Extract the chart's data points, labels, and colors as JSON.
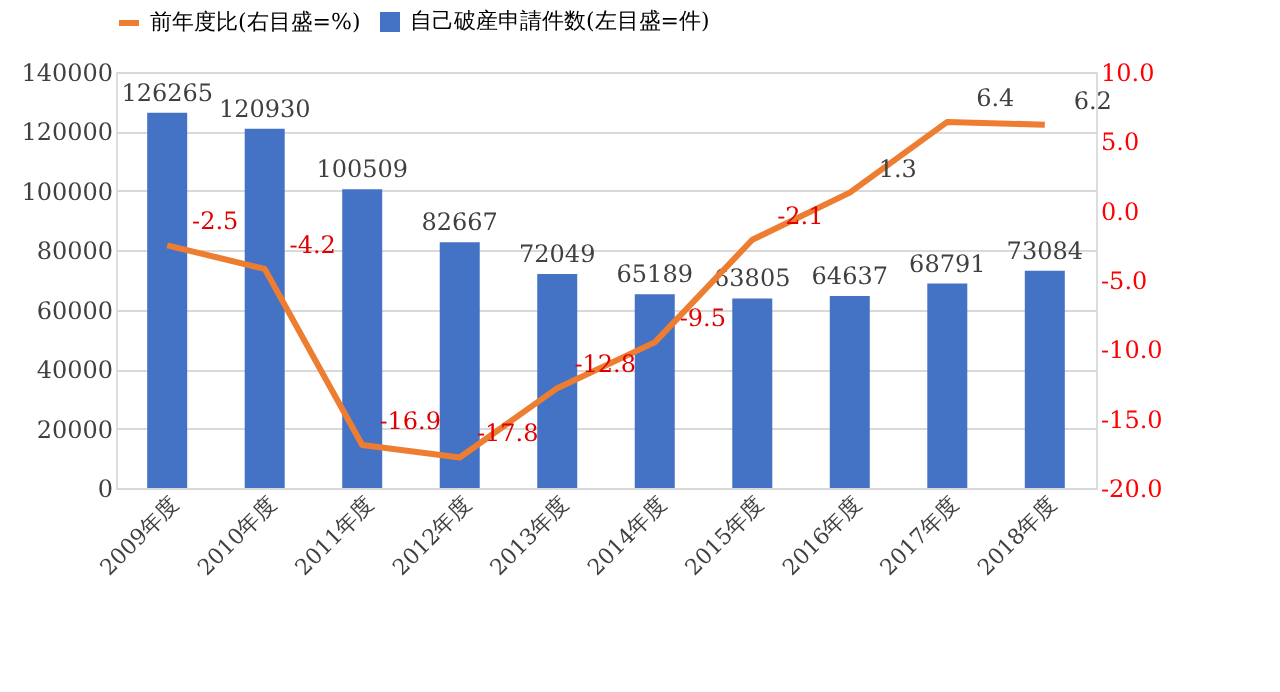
{
  "chart_data": {
    "type": "bar",
    "categories": [
      "2009年度",
      "2010年度",
      "2011年度",
      "2012年度",
      "2013年度",
      "2014年度",
      "2015年度",
      "2016年度",
      "2017年度",
      "2018年度"
    ],
    "series": [
      {
        "name": "自己破産申請件数(左目盛=件)",
        "color": "#4472c4",
        "values": [
          126265,
          120930,
          100509,
          82667,
          72049,
          65189,
          63805,
          64637,
          68791,
          73084
        ]
      },
      {
        "name": "前年度比(右目盛=%)",
        "type": "line",
        "axis": "y2",
        "color": "#ed7d31",
        "values": [
          -2.5,
          -4.2,
          -16.9,
          -17.8,
          -12.8,
          -9.5,
          -2.1,
          1.3,
          6.4,
          6.2
        ]
      }
    ],
    "ylim": [
      0,
      140000
    ],
    "yticks": [
      0,
      20000,
      40000,
      60000,
      80000,
      100000,
      120000,
      140000
    ],
    "y2lim": [
      -20,
      10
    ],
    "y2ticks": [
      {
        "value": -20,
        "label": "-20.0"
      },
      {
        "value": -15,
        "label": "-15.0"
      },
      {
        "value": -10,
        "label": "-10.0"
      },
      {
        "value": -5,
        "label": "-5.0"
      },
      {
        "value": 0,
        "label": "0.0"
      },
      {
        "value": 5,
        "label": "5.0"
      },
      {
        "value": 10,
        "label": "10.0"
      }
    ],
    "data_labels": true,
    "grid": "y",
    "legend": "top",
    "marker": "none",
    "line_style": "solid"
  }
}
